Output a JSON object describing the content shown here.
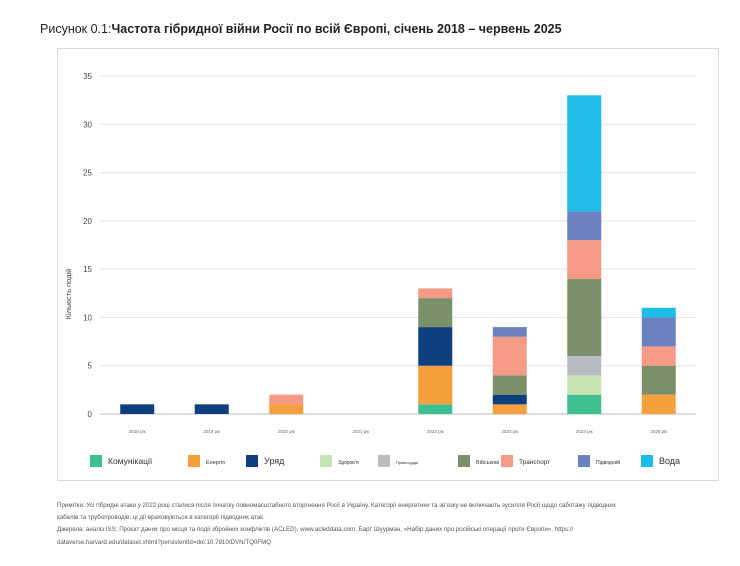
{
  "title": {
    "prefix": "Рисунок 0.1:",
    "main": "Частота гібридної війни Росії по всій Європі, січень 2018 – червень 2025"
  },
  "chart_data": {
    "type": "bar",
    "stacked": true,
    "ylabel": "Кількість подій",
    "xlabel": "",
    "ylim": [
      0,
      35
    ],
    "yticks": [
      0,
      5,
      10,
      15,
      20,
      25,
      30,
      35
    ],
    "grid": true,
    "categories": [
      "2018 рік",
      "2019 рік",
      "2020 рік",
      "2021 рік",
      "2022 рік",
      "2023 рік",
      "2024 рік",
      "2025 рік"
    ],
    "series": [
      {
        "name": "Комунікації",
        "color": "#3fbf8f",
        "values": [
          0,
          0,
          0,
          0,
          1,
          0,
          2,
          0
        ]
      },
      {
        "name": "Енергія",
        "color": "#f5a03c",
        "values": [
          0,
          0,
          1,
          0,
          4,
          1,
          0,
          2
        ]
      },
      {
        "name": "Уряд",
        "color": "#0d3f7f",
        "values": [
          1,
          1,
          0,
          0,
          4,
          1,
          0,
          0
        ]
      },
      {
        "name": "Здоров'я",
        "color": "#c6e4b0",
        "values": [
          0,
          0,
          0,
          0,
          0,
          0,
          2,
          0
        ]
      },
      {
        "name": "Правосуддя",
        "color": "#b8bcc2",
        "values": [
          0,
          0,
          0,
          0,
          0,
          0,
          2,
          0
        ]
      },
      {
        "name": "Військові",
        "color": "#7b8f6a",
        "values": [
          0,
          0,
          0,
          0,
          3,
          2,
          8,
          3
        ]
      },
      {
        "name": "Транспорт",
        "color": "#f59a84",
        "values": [
          0,
          0,
          1,
          0,
          1,
          4,
          4,
          2
        ]
      },
      {
        "name": "Підводний",
        "color": "#6b82bf",
        "values": [
          0,
          0,
          0,
          0,
          0,
          1,
          3,
          3
        ]
      },
      {
        "name": "Вода",
        "color": "#1dbde8",
        "values": [
          0,
          0,
          0,
          0,
          0,
          0,
          12,
          1
        ]
      }
    ]
  },
  "notes": [
    "Примітки: Усі гібридні атаки у 2022 році сталися після початку повномасштабного вторгнення Росії в Україну. Категорії енергетики та зв'язку не включають зусилля Росії щодо саботажу підводних",
    "кабелів та трубопроводів; ці дії враховуються в категорії підводних атак.",
    "Джерела: аналіз ISS; Проєкт даних про місця та події збройних конфліктів (ACLED), www.acleddata.com; Барт Шуурман, «Набір даних про російські операції проти Європи», https://",
    "dataverse.harvard.edu/dataset.xhtml?persistentId=doi:10.7910/DVN/TQ0FMQ"
  ]
}
